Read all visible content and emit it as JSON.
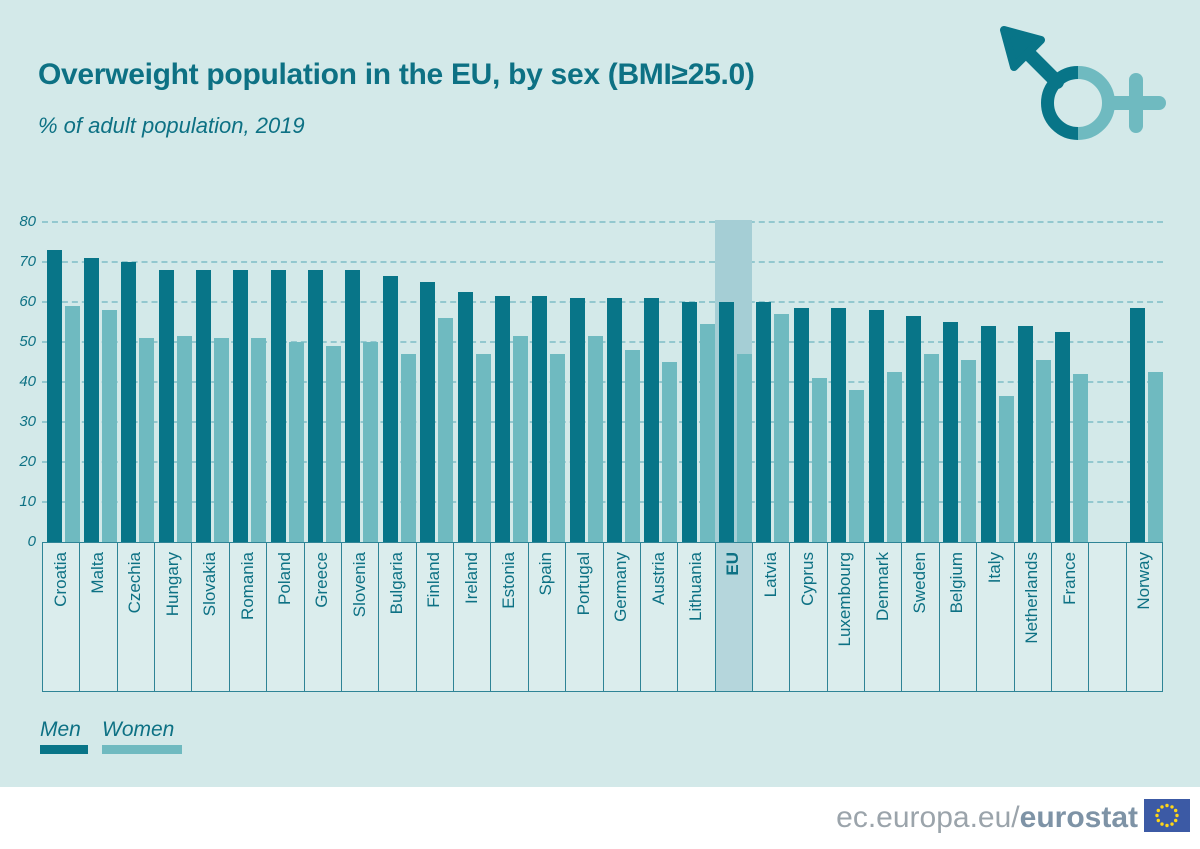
{
  "header": {
    "title": "Overweight population in the EU, by sex (BMI≥25.0)",
    "subtitle": "% of adult population, 2019",
    "icon": "male-female-combined-symbol"
  },
  "colors": {
    "background": "#d3e9e9",
    "men_bar": "#087588",
    "women_bar": "#6fbac0",
    "eu_highlight_band": "#a5ced5",
    "teal_text": "#0d7184",
    "gridline": "#93c8cf",
    "strip_border": "#2e8496",
    "footer_background": "#ffffff",
    "footer_text": "#9ba4ab",
    "footer_brand_text": "#7e93a6",
    "flag_blue": "#3c5aa5",
    "flag_stars": "#ffd617"
  },
  "chart_data": {
    "type": "bar",
    "title": "Overweight population in the EU, by sex (BMI≥25.0)",
    "subtitle": "% of adult population, 2019",
    "xlabel": "",
    "ylabel": "% of adult population",
    "ylim": [
      0,
      80
    ],
    "ytick_step": 10,
    "grid": "horizontal-dashed",
    "legend_position": "bottom-left",
    "highlight_category": "EU",
    "categories": [
      "Croatia",
      "Malta",
      "Czechia",
      "Hungary",
      "Slovakia",
      "Romania",
      "Poland",
      "Greece",
      "Slovenia",
      "Bulgaria",
      "Finland",
      "Ireland",
      "Estonia",
      "Spain",
      "Portugal",
      "Germany",
      "Austria",
      "Lithuania",
      "EU",
      "Latvia",
      "Cyprus",
      "Luxembourg",
      "Denmark",
      "Sweden",
      "Belgium",
      "Italy",
      "Netherlands",
      "France",
      "",
      "Norway"
    ],
    "series": [
      {
        "name": "Men",
        "values": [
          73,
          71,
          70,
          68,
          68,
          68,
          68,
          68,
          68,
          66.5,
          65,
          62.5,
          61.5,
          61.5,
          61,
          61,
          61,
          60,
          60,
          60,
          58.5,
          58.5,
          58,
          56.5,
          55,
          54,
          54,
          52.5,
          null,
          58.5
        ]
      },
      {
        "name": "Women",
        "values": [
          59,
          58,
          51,
          51.5,
          51,
          51,
          50,
          49,
          50,
          47,
          56,
          47,
          51.5,
          47,
          51.5,
          48,
          45,
          54.5,
          47,
          57,
          41,
          38,
          42.5,
          47,
          45.5,
          36.5,
          45.5,
          42,
          null,
          42.5
        ]
      }
    ]
  },
  "legend": {
    "men_label": "Men",
    "women_label": "Women"
  },
  "footer": {
    "url_prefix": "ec.europa.eu/",
    "brand": "eurostat",
    "flag": "eu-flag"
  }
}
